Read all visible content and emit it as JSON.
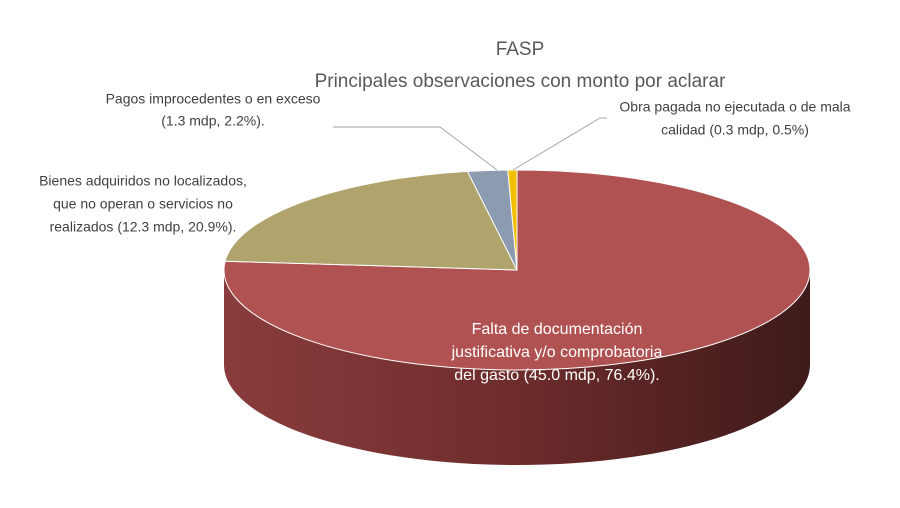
{
  "chart_data": {
    "type": "pie",
    "title": "FASP",
    "subtitle": "Principales observaciones con monto por aclarar",
    "values": [
      76.4,
      20.9,
      2.2,
      0.5
    ],
    "value_labels": [
      [
        "Falta de documentación",
        "justificativa y/o comprobatoria",
        "del gasto (45.0 mdp, 76.4%)."
      ],
      [
        "Bienes adquiridos no localizados,",
        "que no operan o servicios no",
        "realizados (12.3 mdp, 20.9%)."
      ],
      [
        "Pagos improcedentes o en exceso",
        "(1.3 mdp, 2.2%)."
      ],
      [
        "Obra pagada no ejecutada o de mala",
        "calidad (0.3 mdp, 0.5%)"
      ]
    ],
    "colors": [
      "#b05252",
      "#b0a36c",
      "#8d9bb0",
      "#f0c000"
    ]
  }
}
